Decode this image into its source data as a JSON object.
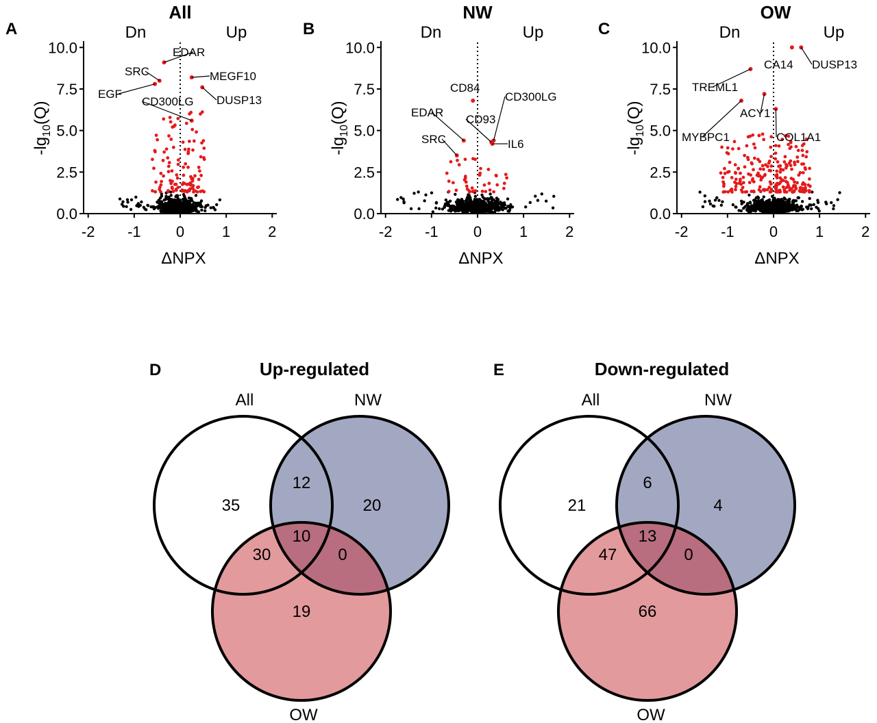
{
  "panels": {
    "A": {
      "letter": "A",
      "title": "All",
      "dn_label": "Dn",
      "up_label": "Up",
      "xlabel": "ΔNPX",
      "ylabel": "-lg10(Q)"
    },
    "B": {
      "letter": "B",
      "title": "NW",
      "dn_label": "Dn",
      "up_label": "Up",
      "xlabel": "ΔNPX",
      "ylabel": "-lg10(Q)"
    },
    "C": {
      "letter": "C",
      "title": "OW",
      "dn_label": "Dn",
      "up_label": "Up",
      "xlabel": "ΔNPX",
      "ylabel": "-lg10(Q)"
    },
    "D": {
      "letter": "D",
      "title": "Up-regulated"
    },
    "E": {
      "letter": "E",
      "title": "Down-regulated"
    }
  },
  "chart_data": [
    {
      "panel": "A",
      "type": "scatter",
      "title": "All",
      "xlabel": "ΔNPX",
      "ylabel": "-lg10(Q)",
      "xlim": [
        -2.1,
        2.1
      ],
      "ylim": [
        0,
        10.3
      ],
      "xticks": [
        "-2",
        "-1",
        "0",
        "1",
        "2"
      ],
      "yticks": [
        "0.0",
        "2.5",
        "5.0",
        "7.5",
        "10.0"
      ],
      "colors": {
        "significant": "#e41a1c",
        "nonsignificant": "#000000"
      },
      "labeled_points": [
        {
          "label": "EDAR",
          "x": -0.35,
          "y": 9.1
        },
        {
          "label": "SRC",
          "x": -0.45,
          "y": 8.0
        },
        {
          "label": "EGF",
          "x": -0.55,
          "y": 7.8
        },
        {
          "label": "MEGF10",
          "x": 0.25,
          "y": 8.2
        },
        {
          "label": "DUSP13",
          "x": 0.48,
          "y": 7.6
        },
        {
          "label": "CD300LG",
          "x": 0.25,
          "y": 5.6
        }
      ],
      "point_cloud": {
        "significant_x_range": [
          -0.62,
          0.55
        ],
        "significant_y_range": [
          1.3,
          6.3
        ],
        "nonsignificant_x_range": [
          -1.4,
          0.9
        ],
        "nonsignificant_y_range": [
          0.0,
          1.3
        ],
        "significant_count": 120,
        "nonsignificant_count": 720
      }
    },
    {
      "panel": "B",
      "type": "scatter",
      "title": "NW",
      "xlabel": "ΔNPX",
      "ylabel": "-lg10(Q)",
      "xlim": [
        -2.1,
        2.1
      ],
      "ylim": [
        0,
        10.3
      ],
      "xticks": [
        "-2",
        "-1",
        "0",
        "1",
        "2"
      ],
      "yticks": [
        "0.0",
        "2.5",
        "5.0",
        "7.5",
        "10.0"
      ],
      "colors": {
        "significant": "#e41a1c",
        "nonsignificant": "#000000"
      },
      "labeled_points": [
        {
          "label": "CD84",
          "x": -0.1,
          "y": 6.8
        },
        {
          "label": "CD300LG",
          "x": 0.35,
          "y": 4.4
        },
        {
          "label": "EDAR",
          "x": -0.3,
          "y": 4.4
        },
        {
          "label": "CD93",
          "x": 0.3,
          "y": 4.3
        },
        {
          "label": "IL6",
          "x": 0.32,
          "y": 4.2
        },
        {
          "label": "SRC",
          "x": -0.45,
          "y": 3.5
        }
      ],
      "point_cloud": {
        "significant_x_range": [
          -0.75,
          0.7
        ],
        "significant_y_range": [
          1.3,
          3.5
        ],
        "nonsignificant_x_range": [
          -1.8,
          1.8
        ],
        "nonsignificant_y_range": [
          0.0,
          1.3
        ],
        "significant_count": 40,
        "nonsignificant_count": 640
      }
    },
    {
      "panel": "C",
      "type": "scatter",
      "title": "OW",
      "xlabel": "ΔNPX",
      "ylabel": "-lg10(Q)",
      "xlim": [
        -2.1,
        2.1
      ],
      "ylim": [
        0,
        10.3
      ],
      "xticks": [
        "-2",
        "-1",
        "0",
        "1",
        "2"
      ],
      "yticks": [
        "0.0",
        "2.5",
        "5.0",
        "7.5",
        "10.0"
      ],
      "colors": {
        "significant": "#e41a1c",
        "nonsignificant": "#000000"
      },
      "labeled_points": [
        {
          "label": "CA14",
          "x": 0.4,
          "y": 10.0
        },
        {
          "label": "DUSP13",
          "x": 0.6,
          "y": 10.0
        },
        {
          "label": "TREML1",
          "x": -0.5,
          "y": 8.7
        },
        {
          "label": "ACY1",
          "x": -0.2,
          "y": 7.2
        },
        {
          "label": "MYBPC1",
          "x": -0.7,
          "y": 6.8
        },
        {
          "label": "COL1A1",
          "x": 0.05,
          "y": 6.3
        }
      ],
      "point_cloud": {
        "significant_x_range": [
          -1.15,
          0.8
        ],
        "significant_y_range": [
          1.3,
          4.8
        ],
        "nonsignificant_x_range": [
          -1.6,
          1.5
        ],
        "nonsignificant_y_range": [
          0.0,
          1.3
        ],
        "significant_count": 240,
        "nonsignificant_count": 700
      }
    },
    {
      "panel": "D",
      "type": "venn",
      "title": "Up-regulated",
      "sets": [
        "All",
        "NW",
        "OW"
      ],
      "set_colors": {
        "All": "#ffffff",
        "NW": "#a3a8c2",
        "OW": "#e39a9d"
      },
      "regions": [
        {
          "sets": [
            "All"
          ],
          "count": "35"
        },
        {
          "sets": [
            "NW"
          ],
          "count": "20"
        },
        {
          "sets": [
            "OW"
          ],
          "count": "19"
        },
        {
          "sets": [
            "All",
            "NW"
          ],
          "count": "12"
        },
        {
          "sets": [
            "All",
            "OW"
          ],
          "count": "30"
        },
        {
          "sets": [
            "NW",
            "OW"
          ],
          "count": "0"
        },
        {
          "sets": [
            "All",
            "NW",
            "OW"
          ],
          "count": "10"
        }
      ]
    },
    {
      "panel": "E",
      "type": "venn",
      "title": "Down-regulated",
      "sets": [
        "All",
        "NW",
        "OW"
      ],
      "set_colors": {
        "All": "#ffffff",
        "NW": "#a3a8c2",
        "OW": "#e39a9d"
      },
      "regions": [
        {
          "sets": [
            "All"
          ],
          "count": "21"
        },
        {
          "sets": [
            "NW"
          ],
          "count": "4"
        },
        {
          "sets": [
            "OW"
          ],
          "count": "66"
        },
        {
          "sets": [
            "All",
            "NW"
          ],
          "count": "6"
        },
        {
          "sets": [
            "All",
            "OW"
          ],
          "count": "47"
        },
        {
          "sets": [
            "NW",
            "OW"
          ],
          "count": "0"
        },
        {
          "sets": [
            "All",
            "NW",
            "OW"
          ],
          "count": "13"
        }
      ]
    }
  ]
}
